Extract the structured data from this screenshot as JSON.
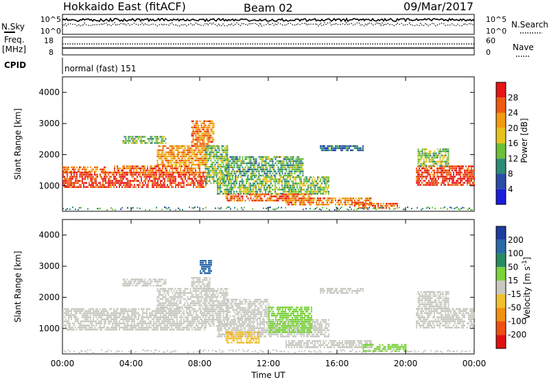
{
  "header": {
    "station": "Hokkaido East (fitACF)",
    "beam": "Beam 02",
    "date": "09/Mar/2017"
  },
  "strip_nsky": {
    "label": "N.Sky",
    "ticks_left": [
      "10^5",
      "10^0"
    ],
    "ticks_right": [
      "10^5",
      "10^0"
    ],
    "right_label": "N.Search"
  },
  "strip_freq": {
    "label_line1": "Freq.",
    "label_line2": "[MHz]",
    "ticks_left": [
      "18",
      "8"
    ],
    "ticks_right": [
      "60",
      "0"
    ],
    "right_label": "Nave"
  },
  "strip_cpid": {
    "label": "CPID",
    "mode_text": "normal (fast) 151"
  },
  "chart_data": [
    {
      "type": "heatmap",
      "name": "power",
      "ylabel": "Slant Range [km]",
      "xlabel": "",
      "x_range_hours": [
        0,
        24
      ],
      "x_ticks": [
        "00:00",
        "04:00",
        "08:00",
        "12:00",
        "16:00",
        "20:00",
        "00:00"
      ],
      "ylim": [
        180,
        4500
      ],
      "y_ticks": [
        1000,
        2000,
        3000,
        4000
      ],
      "colorbar": {
        "label": "Power [dB]",
        "ticks": [
          "4",
          "8",
          "12",
          "16",
          "20",
          "24",
          "28"
        ],
        "levels": [
          {
            "from": 0,
            "to": 4,
            "color": "#1c1cdc"
          },
          {
            "from": 4,
            "to": 8,
            "color": "#2a4ba6"
          },
          {
            "from": 8,
            "to": 12,
            "color": "#2e8a77"
          },
          {
            "from": 12,
            "to": 16,
            "color": "#6cc03a"
          },
          {
            "from": 16,
            "to": 20,
            "color": "#e8c21e"
          },
          {
            "from": 20,
            "to": 24,
            "color": "#f29a10"
          },
          {
            "from": 24,
            "to": 28,
            "color": "#ee5a10"
          },
          {
            "from": 28,
            "to": 32,
            "color": "#e81414"
          }
        ]
      },
      "regions": [
        {
          "t0": 0.0,
          "t1": 8.4,
          "r0": 950,
          "r1": 1450,
          "value": 28
        },
        {
          "t0": 0.0,
          "t1": 2.5,
          "r0": 1480,
          "r1": 1620,
          "value": 24
        },
        {
          "t0": 3.0,
          "t1": 8.0,
          "r0": 1450,
          "r1": 1650,
          "value": 25
        },
        {
          "t0": 5.5,
          "t1": 8.4,
          "r0": 1650,
          "r1": 2300,
          "value": 22
        },
        {
          "t0": 7.5,
          "t1": 8.8,
          "r0": 2300,
          "r1": 3100,
          "value": 24
        },
        {
          "t0": 8.3,
          "t1": 9.6,
          "r0": 1100,
          "r1": 2300,
          "value": 14
        },
        {
          "t0": 9.0,
          "t1": 15.5,
          "r0": 750,
          "r1": 1300,
          "value": 14
        },
        {
          "t0": 9.5,
          "t1": 14.0,
          "r0": 1300,
          "r1": 1950,
          "value": 12
        },
        {
          "t0": 9.5,
          "t1": 14.5,
          "r0": 550,
          "r1": 750,
          "value": 26
        },
        {
          "t0": 13.0,
          "t1": 18.0,
          "r0": 400,
          "r1": 620,
          "value": 24
        },
        {
          "t0": 17.0,
          "t1": 19.5,
          "r0": 300,
          "r1": 450,
          "value": 26
        },
        {
          "t0": 20.6,
          "t1": 24.0,
          "r0": 1050,
          "r1": 1650,
          "value": 28
        },
        {
          "t0": 20.7,
          "t1": 22.5,
          "r0": 1650,
          "r1": 2200,
          "value": 14
        },
        {
          "t0": 15.0,
          "t1": 17.5,
          "r0": 2150,
          "r1": 2300,
          "value": 8
        },
        {
          "t0": 3.5,
          "t1": 6.0,
          "r0": 2350,
          "r1": 2600,
          "value": 13
        }
      ]
    },
    {
      "type": "heatmap",
      "name": "velocity",
      "ylabel": "Slant Range [km]",
      "xlabel": "Time UT",
      "x_range_hours": [
        0,
        24
      ],
      "x_ticks": [
        "00:00",
        "04:00",
        "08:00",
        "12:00",
        "16:00",
        "20:00",
        "00:00"
      ],
      "ylim": [
        180,
        4500
      ],
      "y_ticks": [
        1000,
        2000,
        3000,
        4000
      ],
      "colorbar": {
        "label": "Velocity [m s^-1]",
        "ticks": [
          "200",
          "100",
          "50",
          "15",
          "-15",
          "-50",
          "-100",
          "-200"
        ],
        "levels": [
          {
            "from": 200,
            "to": 300,
            "color": "#1e3c9e"
          },
          {
            "from": 100,
            "to": 200,
            "color": "#2b6aa8"
          },
          {
            "from": 50,
            "to": 100,
            "color": "#2a8a62"
          },
          {
            "from": 15,
            "to": 50,
            "color": "#7ad23c"
          },
          {
            "from": -15,
            "to": 15,
            "color": "#c8c8c0"
          },
          {
            "from": -50,
            "to": -15,
            "color": "#f0c030"
          },
          {
            "from": -100,
            "to": -50,
            "color": "#f29010"
          },
          {
            "from": -200,
            "to": -100,
            "color": "#ee5010"
          },
          {
            "from": -300,
            "to": -200,
            "color": "#e01010"
          }
        ]
      },
      "regions": [
        {
          "t0": 0.0,
          "t1": 8.4,
          "r0": 950,
          "r1": 1650,
          "value": 0
        },
        {
          "t0": 5.5,
          "t1": 8.4,
          "r0": 1650,
          "r1": 2300,
          "value": 0
        },
        {
          "t0": 7.5,
          "t1": 8.6,
          "r0": 2300,
          "r1": 2650,
          "value": 0
        },
        {
          "t0": 8.0,
          "t1": 8.7,
          "r0": 2750,
          "r1": 3200,
          "value": 150
        },
        {
          "t0": 8.3,
          "t1": 9.6,
          "r0": 1100,
          "r1": 2300,
          "value": 0
        },
        {
          "t0": 9.0,
          "t1": 15.5,
          "r0": 750,
          "r1": 1300,
          "value": 0
        },
        {
          "t0": 9.5,
          "t1": 12.0,
          "r0": 1300,
          "r1": 1950,
          "value": 0
        },
        {
          "t0": 12.0,
          "t1": 14.5,
          "r0": 900,
          "r1": 1700,
          "value": 30
        },
        {
          "t0": 9.5,
          "t1": 11.5,
          "r0": 550,
          "r1": 900,
          "value": -40
        },
        {
          "t0": 13.0,
          "t1": 18.0,
          "r0": 400,
          "r1": 620,
          "value": 0
        },
        {
          "t0": 17.5,
          "t1": 20.0,
          "r0": 300,
          "r1": 500,
          "value": 30
        },
        {
          "t0": 20.6,
          "t1": 24.0,
          "r0": 1050,
          "r1": 1650,
          "value": 0
        },
        {
          "t0": 20.7,
          "t1": 22.5,
          "r0": 1650,
          "r1": 2200,
          "value": 0
        },
        {
          "t0": 15.0,
          "t1": 17.5,
          "r0": 2150,
          "r1": 2300,
          "value": 0
        },
        {
          "t0": 3.5,
          "t1": 6.0,
          "r0": 2350,
          "r1": 2600,
          "value": 0
        }
      ]
    }
  ]
}
